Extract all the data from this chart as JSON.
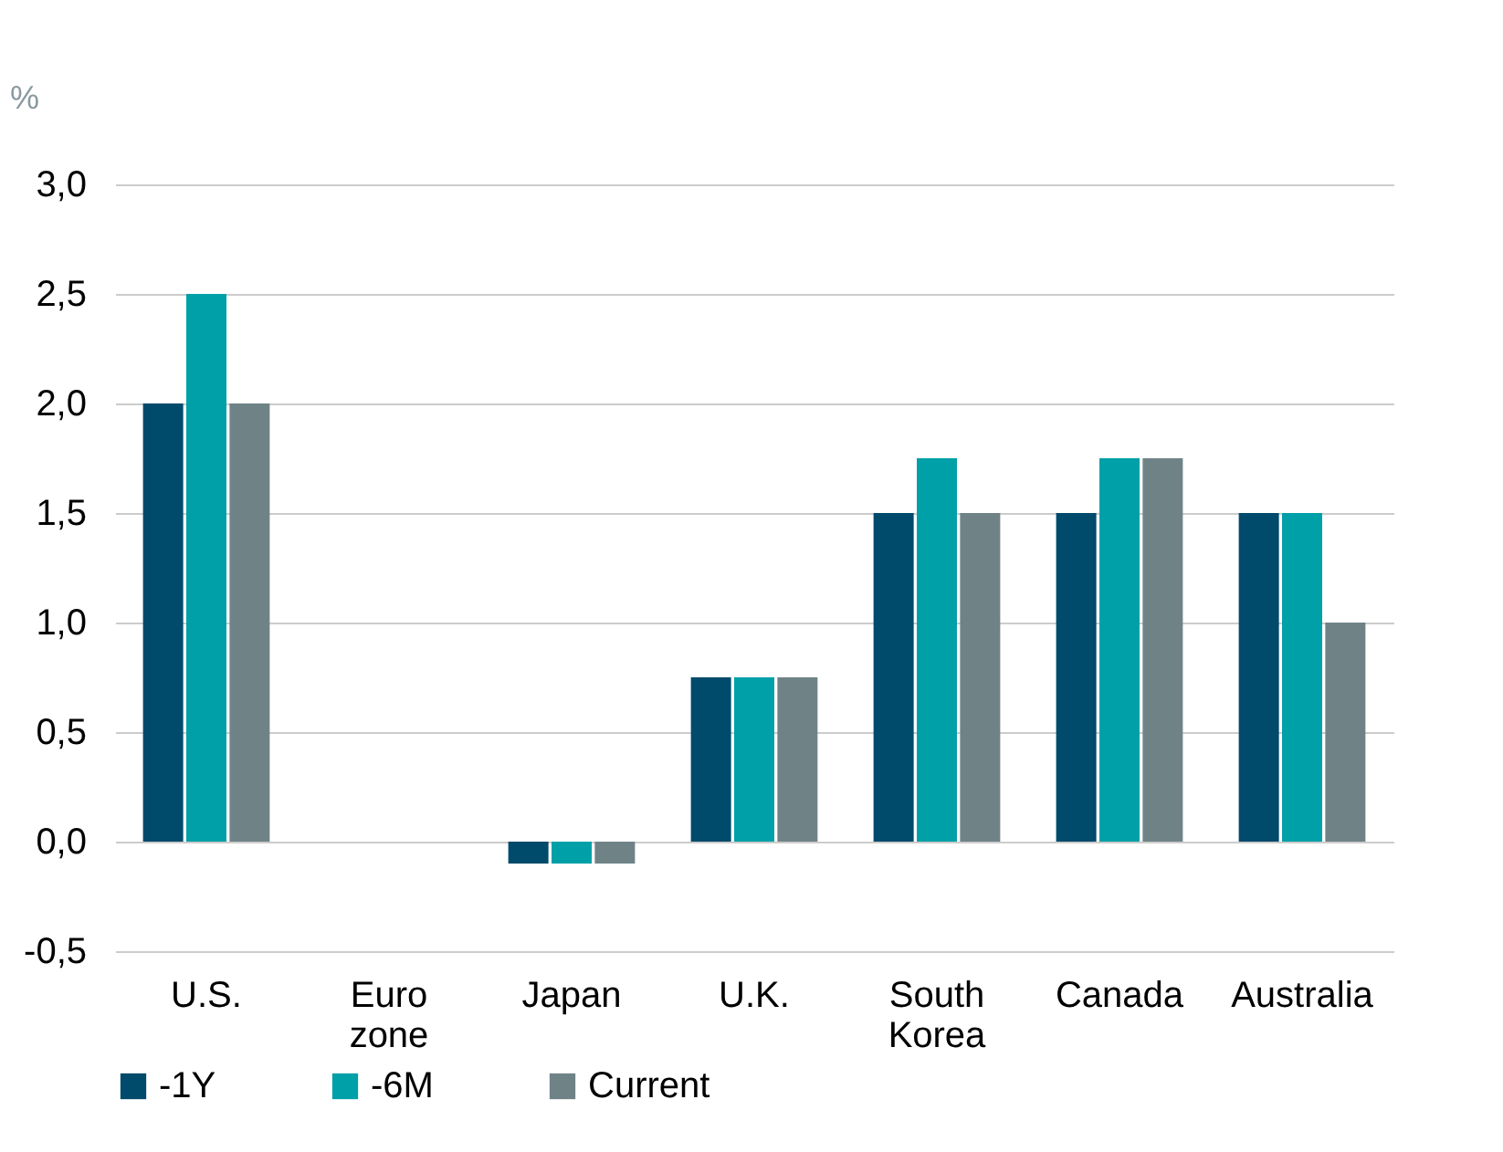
{
  "chart_data": {
    "type": "bar",
    "ylabel": "%",
    "categories": [
      "U.S.",
      "Euro zone",
      "Japan",
      "U.K.",
      "South Korea",
      "Canada",
      "Australia"
    ],
    "series": [
      {
        "name": "-1Y",
        "color": "#004a6b",
        "values": [
          2.0,
          0.0,
          -0.1,
          0.75,
          1.5,
          1.5,
          1.5
        ]
      },
      {
        "name": "-6M",
        "color": "#00a0a8",
        "values": [
          2.5,
          0.0,
          -0.1,
          0.75,
          1.75,
          1.75,
          1.5
        ]
      },
      {
        "name": "Current",
        "color": "#6f8387",
        "values": [
          2.0,
          0.0,
          -0.1,
          0.75,
          1.5,
          1.75,
          1.0
        ]
      }
    ],
    "ylim": [
      -0.5,
      3.0
    ],
    "yticks": [
      {
        "value": -0.5,
        "label": "-0,5"
      },
      {
        "value": 0,
        "label": "0,0"
      },
      {
        "value": 0.5,
        "label": "0,5"
      },
      {
        "value": 1.0,
        "label": "1,0"
      },
      {
        "value": 1.5,
        "label": "1,5"
      },
      {
        "value": 2.0,
        "label": "2,0"
      },
      {
        "value": 2.5,
        "label": "2,5"
      },
      {
        "value": 3.0,
        "label": "3,0"
      }
    ],
    "grid": "y",
    "legend": "bottom"
  }
}
